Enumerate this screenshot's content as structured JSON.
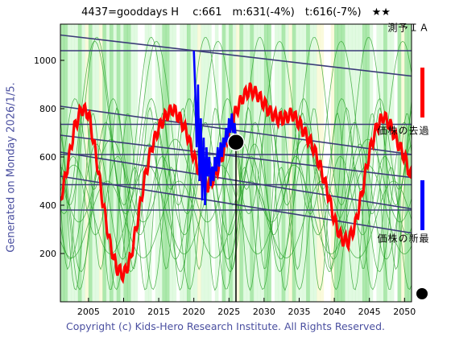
{
  "title": "4437=gooddays H　 c:661　m:631(-4%)　t:616(-7%)　★★",
  "generated": "Generated on Monday 2026/1/5.",
  "copyright": "Copyright (c) Kids-Hero Research Institute. All Rights Reserved.",
  "legend": {
    "ai_forecast": "ＡＩ予測",
    "past_price": "過去の株価",
    "latest_price": "最新の株価"
  },
  "colors": {
    "ai_forecast": "#ff0000",
    "past_price": "#0000ff",
    "latest_price": "#000000",
    "trend_lines": "#3b3b78",
    "band_green": "#6ad66a",
    "band_light_green": "#c8f5c8",
    "band_yellow": "#f5f5c0"
  },
  "chart_data": {
    "type": "line",
    "xlim": [
      2001,
      2051
    ],
    "ylim": [
      0,
      1150
    ],
    "x_ticks": [
      2005,
      2010,
      2015,
      2020,
      2025,
      2030,
      2035,
      2040,
      2045,
      2050
    ],
    "y_ticks": [
      200,
      400,
      600,
      800,
      1000
    ],
    "grid": false,
    "series": [
      {
        "name": "ＡＩ予測",
        "x": [
          2001,
          2002,
          2003,
          2004,
          2005,
          2006,
          2007,
          2008,
          2009,
          2010,
          2011,
          2012,
          2013,
          2014,
          2015,
          2016,
          2017,
          2018,
          2019,
          2020,
          2021,
          2022,
          2023,
          2024,
          2025,
          2026,
          2027,
          2028,
          2029,
          2030,
          2031,
          2032,
          2033,
          2034,
          2035,
          2036,
          2037,
          2038,
          2039,
          2040,
          2041,
          2042,
          2043,
          2044,
          2045,
          2046,
          2047,
          2048,
          2049,
          2050,
          2051
        ],
        "y": [
          420,
          560,
          720,
          800,
          780,
          620,
          420,
          250,
          140,
          110,
          180,
          340,
          510,
          640,
          720,
          770,
          800,
          760,
          700,
          600,
          520,
          480,
          520,
          600,
          700,
          790,
          850,
          880,
          860,
          820,
          780,
          760,
          760,
          780,
          740,
          690,
          640,
          560,
          460,
          340,
          260,
          250,
          320,
          460,
          620,
          720,
          770,
          730,
          660,
          600,
          510
        ]
      },
      {
        "name": "過去の株価",
        "x": [
          2020.0,
          2020.2,
          2020.4,
          2020.6,
          2020.8,
          2021.0,
          2021.2,
          2021.4,
          2021.6,
          2021.8,
          2022.0,
          2022.2,
          2022.4,
          2022.6,
          2022.8,
          2023.0,
          2023.2,
          2023.4,
          2023.6,
          2023.8,
          2024.0,
          2024.2,
          2024.4,
          2024.6,
          2024.8,
          2025.0,
          2025.2,
          2025.4,
          2025.6,
          2025.8,
          2026.0
        ],
        "y": [
          1040,
          880,
          640,
          900,
          500,
          760,
          420,
          680,
          400,
          640,
          520,
          600,
          480,
          560,
          500,
          600,
          540,
          640,
          560,
          660,
          600,
          680,
          640,
          720,
          660,
          760,
          700,
          780,
          700,
          740,
          661
        ]
      }
    ],
    "latest_point": {
      "x": 2026,
      "y": 661
    },
    "trend_lines": [
      {
        "x": [
          2001,
          2051
        ],
        "y": [
          1105,
          935
        ]
      },
      {
        "x": [
          2001,
          2051
        ],
        "y": [
          810,
          610
        ]
      },
      {
        "x": [
          2001,
          2051
        ],
        "y": [
          690,
          515
        ]
      },
      {
        "x": [
          2001,
          2051
        ],
        "y": [
          620,
          385
        ]
      },
      {
        "x": [
          2001,
          2051
        ],
        "y": [
          520,
          285
        ]
      },
      {
        "x": [
          2001,
          2051
        ],
        "y": [
          1040,
          1040
        ]
      },
      {
        "x": [
          2001,
          2051
        ],
        "y": [
          735,
          735
        ]
      },
      {
        "x": [
          2001,
          2051
        ],
        "y": [
          610,
          610
        ]
      },
      {
        "x": [
          2001,
          2051
        ],
        "y": [
          485,
          485
        ]
      },
      {
        "x": [
          2001,
          2051
        ],
        "y": [
          380,
          380
        ]
      }
    ]
  }
}
